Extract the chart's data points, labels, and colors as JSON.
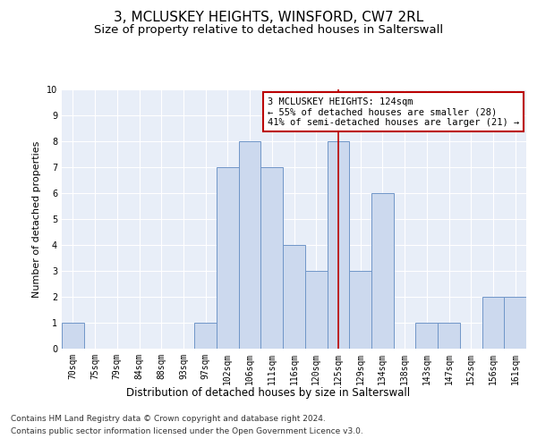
{
  "title": "3, MCLUSKEY HEIGHTS, WINSFORD, CW7 2RL",
  "subtitle": "Size of property relative to detached houses in Salterswall",
  "xlabel_bottom": "Distribution of detached houses by size in Salterswall",
  "ylabel": "Number of detached properties",
  "categories": [
    "70sqm",
    "75sqm",
    "79sqm",
    "84sqm",
    "88sqm",
    "93sqm",
    "97sqm",
    "102sqm",
    "106sqm",
    "111sqm",
    "116sqm",
    "120sqm",
    "125sqm",
    "129sqm",
    "134sqm",
    "138sqm",
    "143sqm",
    "147sqm",
    "152sqm",
    "156sqm",
    "161sqm"
  ],
  "values": [
    1,
    0,
    0,
    0,
    0,
    0,
    1,
    7,
    8,
    7,
    4,
    3,
    8,
    3,
    6,
    0,
    1,
    1,
    0,
    2,
    2
  ],
  "bar_color": "#ccd9ee",
  "bar_edgecolor": "#7096c8",
  "reference_line_x": 12,
  "reference_line_color": "#bb0000",
  "annotation_text": "3 MCLUSKEY HEIGHTS: 124sqm\n← 55% of detached houses are smaller (28)\n41% of semi-detached houses are larger (21) →",
  "annotation_box_color": "#bb0000",
  "ylim": [
    0,
    10
  ],
  "yticks": [
    0,
    1,
    2,
    3,
    4,
    5,
    6,
    7,
    8,
    9,
    10
  ],
  "background_color": "#e8eef8",
  "footer_line1": "Contains HM Land Registry data © Crown copyright and database right 2024.",
  "footer_line2": "Contains public sector information licensed under the Open Government Licence v3.0.",
  "title_fontsize": 11,
  "subtitle_fontsize": 9.5,
  "axis_label_fontsize": 8,
  "tick_fontsize": 7,
  "annotation_fontsize": 7.5,
  "footer_fontsize": 6.5
}
